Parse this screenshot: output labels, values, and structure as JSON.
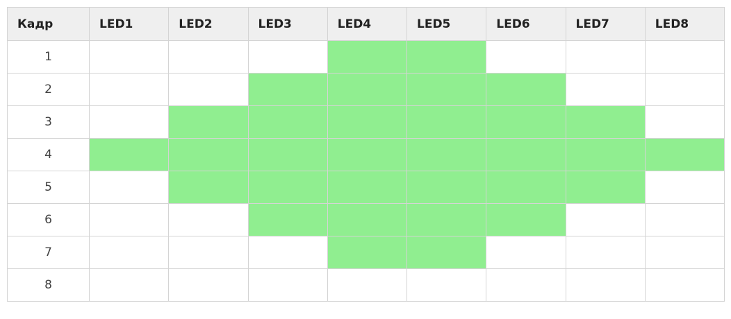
{
  "table": {
    "headers": [
      "Кадр",
      "LED1",
      "LED2",
      "LED3",
      "LED4",
      "LED5",
      "LED6",
      "LED7",
      "LED8"
    ],
    "on_color": "#90ee90",
    "rows": [
      {
        "frame": "1",
        "leds": [
          0,
          0,
          0,
          1,
          1,
          0,
          0,
          0
        ]
      },
      {
        "frame": "2",
        "leds": [
          0,
          0,
          1,
          1,
          1,
          1,
          0,
          0
        ]
      },
      {
        "frame": "3",
        "leds": [
          0,
          1,
          1,
          1,
          1,
          1,
          1,
          0
        ]
      },
      {
        "frame": "4",
        "leds": [
          1,
          1,
          1,
          1,
          1,
          1,
          1,
          1
        ]
      },
      {
        "frame": "5",
        "leds": [
          0,
          1,
          1,
          1,
          1,
          1,
          1,
          0
        ]
      },
      {
        "frame": "6",
        "leds": [
          0,
          0,
          1,
          1,
          1,
          1,
          0,
          0
        ]
      },
      {
        "frame": "7",
        "leds": [
          0,
          0,
          0,
          1,
          1,
          0,
          0,
          0
        ]
      },
      {
        "frame": "8",
        "leds": [
          0,
          0,
          0,
          0,
          0,
          0,
          0,
          0
        ]
      }
    ]
  }
}
